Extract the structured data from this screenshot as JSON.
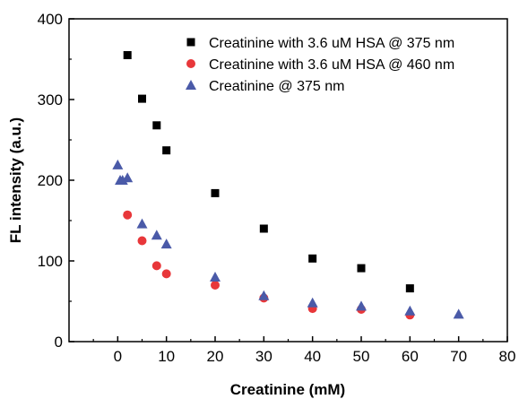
{
  "chart_data": {
    "type": "scatter",
    "title": "",
    "xlabel": "Creatinine (mM)",
    "ylabel": "FL intensity (a.u.)",
    "xlim": [
      -10,
      80
    ],
    "ylim": [
      0,
      400
    ],
    "xticks": [
      0,
      10,
      20,
      30,
      40,
      50,
      60,
      70,
      80
    ],
    "yticks": [
      0,
      100,
      200,
      300,
      400
    ],
    "grid": false,
    "legend_position": "top-right",
    "series": [
      {
        "name": "Creatinine with 3.6 uM HSA @ 375 nm",
        "marker": "square",
        "color": "#000000",
        "x": [
          2,
          5,
          8,
          10,
          20,
          30,
          40,
          50,
          60
        ],
        "y": [
          355,
          301,
          268,
          237,
          184,
          140,
          103,
          91,
          66
        ]
      },
      {
        "name": "Creatinine with 3.6 uM HSA @ 460 nm",
        "marker": "circle",
        "color": "#e8373a",
        "x": [
          2,
          5,
          8,
          10,
          20,
          30,
          40,
          50,
          60
        ],
        "y": [
          157,
          125,
          94,
          84,
          70,
          54,
          41,
          40,
          33
        ]
      },
      {
        "name": "Creatinine @ 375 nm",
        "marker": "triangle",
        "color": "#4a5aa8",
        "x": [
          0,
          0.5,
          1,
          2,
          5,
          8,
          10,
          20,
          30,
          40,
          50,
          60,
          70
        ],
        "y": [
          219,
          200,
          200,
          203,
          146,
          132,
          121,
          80,
          57,
          48,
          44,
          38,
          34
        ]
      }
    ]
  }
}
